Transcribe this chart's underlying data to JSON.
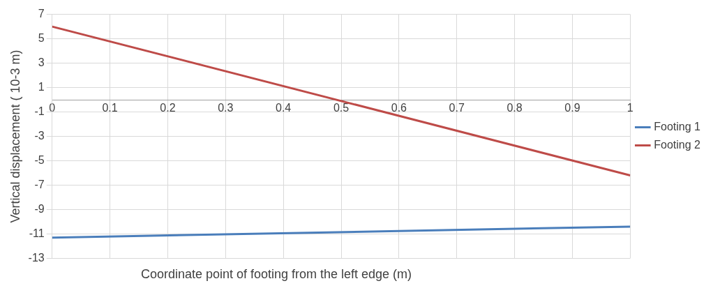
{
  "chart_data": {
    "type": "line",
    "xlabel": "Coordinate point of footing from the left edge (m)",
    "ylabel": "Vertical displacement ( 10-3 m)",
    "x": [
      0,
      1
    ],
    "series": [
      {
        "name": "Footing 1",
        "color": "#4a7ebb",
        "values": [
          -11.3,
          -10.4
        ]
      },
      {
        "name": "Footing 2",
        "color": "#be4b48",
        "values": [
          6,
          -6.2
        ]
      }
    ],
    "xlim": [
      0,
      1
    ],
    "xticks": [
      0,
      0.1,
      0.2,
      0.3,
      0.4,
      0.5,
      0.6,
      0.7,
      0.8,
      0.9,
      1
    ],
    "ylim": [
      -13,
      7
    ],
    "yticks": [
      -13,
      -11,
      -9,
      -7,
      -5,
      -3,
      -1,
      1,
      3,
      5,
      7
    ],
    "grid": true,
    "legend": "right",
    "marker": "none",
    "line_style": "solid"
  }
}
